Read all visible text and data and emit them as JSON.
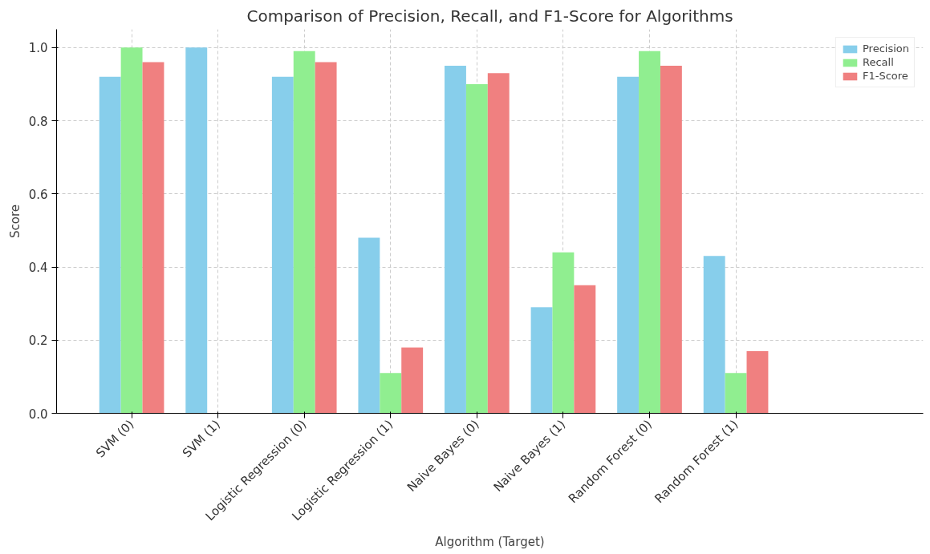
{
  "chart_data": {
    "type": "bar",
    "title": "Comparison of Precision, Recall, and F1-Score for Algorithms",
    "xlabel": "Algorithm (Target)",
    "ylabel": "Score",
    "categories": [
      "SVM (0)",
      "SVM (1)",
      "Logistic Regression (0)",
      "Logistic Regression (1)",
      "Naive Bayes (0)",
      "Naive Bayes (1)",
      "Random Forest (0)",
      "Random Forest (1)"
    ],
    "series": [
      {
        "name": "Precision",
        "color": "#87ceeb",
        "values": [
          0.92,
          1.0,
          0.92,
          0.48,
          0.95,
          0.29,
          0.92,
          0.43
        ]
      },
      {
        "name": "Recall",
        "color": "#90ee90",
        "values": [
          1.0,
          0.0,
          0.99,
          0.11,
          0.9,
          0.44,
          0.99,
          0.11
        ]
      },
      {
        "name": "F1-Score",
        "color": "#f08080",
        "values": [
          0.96,
          0.0,
          0.96,
          0.18,
          0.93,
          0.35,
          0.95,
          0.17
        ]
      }
    ],
    "ylim": [
      0,
      1.05
    ],
    "yticks": [
      {
        "value": 0,
        "label": "0.0"
      },
      0.2,
      0.4,
      0.6,
      0.8,
      {
        "value": 1,
        "label": "1.0"
      }
    ],
    "grid": true,
    "legend": "top right"
  }
}
